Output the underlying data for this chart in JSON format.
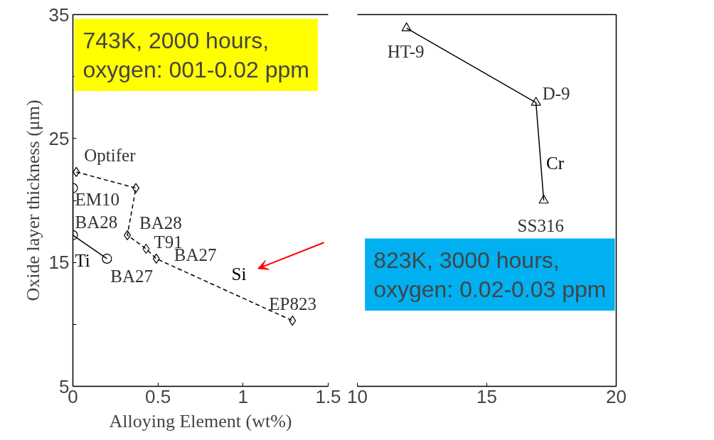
{
  "chart_data": [
    {
      "type": "line",
      "xlabel": "Alloying Element (wt%)",
      "ylabel": "Oxide layer thickness (μm)",
      "xlim": [
        0,
        1.5
      ],
      "xticks": [
        0,
        0.5,
        1,
        1.5
      ],
      "ylim": [
        5,
        35
      ],
      "yticks": [
        5,
        {
          "value": 10,
          "label": null
        },
        15,
        {
          "value": 20,
          "label": null
        },
        25,
        {
          "value": 30,
          "label": null
        },
        35
      ],
      "series": [
        {
          "name": "Ti",
          "color": "#000000",
          "marker": "circle",
          "line_style": "solid",
          "x": [
            0,
            0,
            0.2
          ],
          "values": [
            21.0,
            17.2,
            15.3
          ]
        },
        {
          "name": "Si",
          "color": "#000000",
          "marker": "diamond",
          "line_style": "dashed",
          "x": [
            0.02,
            0.37,
            0.32,
            0.43,
            0.49,
            1.29
          ],
          "values": [
            22.3,
            21.0,
            17.2,
            16.1,
            15.3,
            10.3
          ]
        }
      ],
      "annotations": [
        "743K, 2000 hours,\noxygen: 001-0.02 ppm",
        {
          "text": "Optifer",
          "x": 0.02,
          "y": 22.3
        },
        {
          "text": "EM10",
          "x": 0,
          "y": 21.0
        },
        {
          "text": "BA28",
          "x": 0,
          "y": 17.2
        },
        {
          "text": "BA28",
          "x": 0.32,
          "y": 17.2
        },
        {
          "text": "T91",
          "x": 0.43,
          "y": 16.1
        },
        {
          "text": "BA27",
          "x": 0.49,
          "y": 15.3
        },
        {
          "text": "BA27",
          "x": 0.2,
          "y": 15.3
        },
        {
          "text": "EP823",
          "x": 1.29,
          "y": 10.3
        }
      ]
    },
    {
      "type": "line",
      "xlim": [
        10,
        20
      ],
      "xticks": [
        10,
        15,
        20
      ],
      "ylim": [
        5,
        35
      ],
      "tick_labels": "x",
      "series": [
        {
          "name": "Cr",
          "color": "#000000",
          "marker": "triangle",
          "line_style": "solid",
          "x": [
            11.9,
            16.9,
            17.2
          ],
          "values": [
            33.9,
            27.9,
            20.0
          ]
        }
      ],
      "annotations": [
        {
          "text": "HT-9",
          "x": 11.9,
          "y": 33.9
        },
        {
          "text": "D-9",
          "x": 16.9,
          "y": 27.9
        },
        {
          "text": "SS316",
          "x": 17.2,
          "y": 20.0
        },
        "823K, 3000 hours,\noxygen: 0.02-0.03 ppm"
      ]
    }
  ]
}
